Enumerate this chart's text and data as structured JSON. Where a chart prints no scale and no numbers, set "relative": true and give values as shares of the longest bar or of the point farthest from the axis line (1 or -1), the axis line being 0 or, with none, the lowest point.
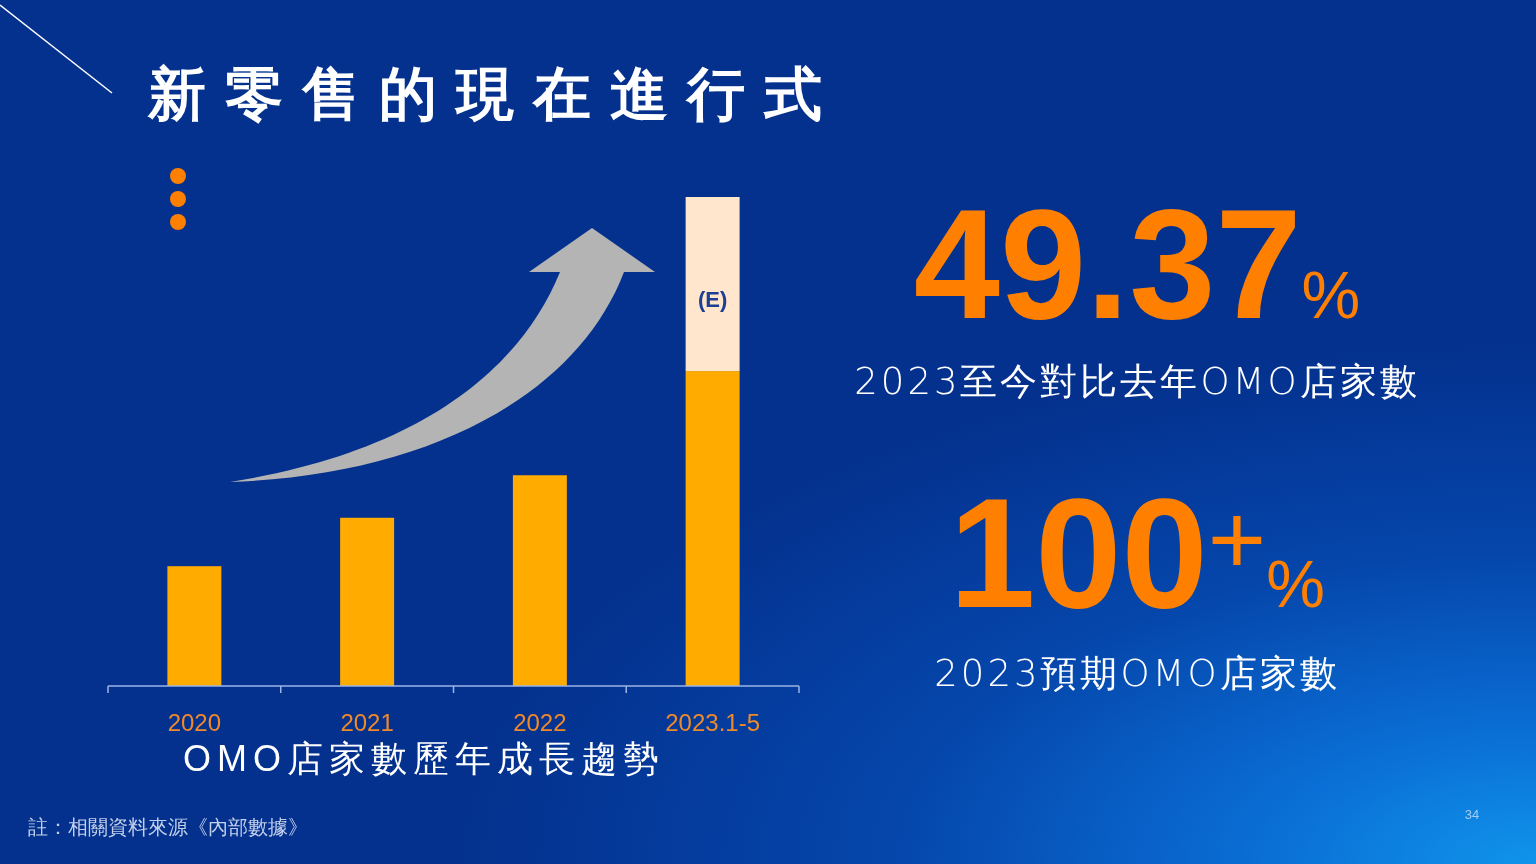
{
  "chart_data": [
    {
      "type": "bar",
      "title": "新零售的現在進行式",
      "xlabel": "OMO店家數歷年成長趨勢",
      "categories": [
        "2020",
        "2021",
        "2022",
        "2023.1-5"
      ],
      "stacked": true,
      "relative": true,
      "series": [
        {
          "color": "#ffab00",
          "values": [
            0.245,
            0.344,
            0.431,
            0.644
          ]
        },
        {
          "color": "#ffe6cc",
          "values": [
            null,
            null,
            null,
            0.356
          ]
        }
      ],
      "annotations": [
        "(E)",
        "註：相關資料來源《內部數據》",
        "34"
      ]
    },
    {
      "type": "other",
      "annotations": [
        "49.37%",
        "2023至今對比去年OMO店家數",
        "100$^{+}$%",
        "2023預期OMO店家數"
      ]
    }
  ]
}
